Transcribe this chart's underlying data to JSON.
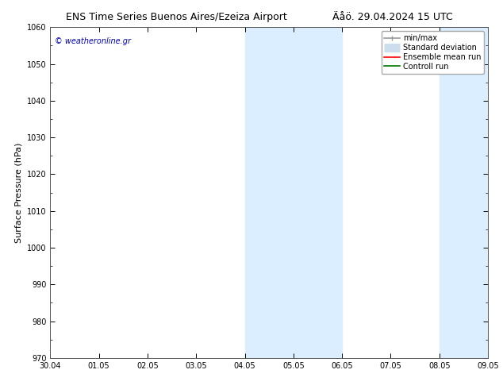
{
  "title_left": "ENS Time Series Buenos Aires/Ezeiza Airport",
  "title_right": "Äåö. 29.04.2024 15 UTC",
  "ylabel": "Surface Pressure (hPa)",
  "ylim": [
    970,
    1060
  ],
  "yticks": [
    970,
    980,
    990,
    1000,
    1010,
    1020,
    1030,
    1040,
    1050,
    1060
  ],
  "xlabels": [
    "30.04",
    "01.05",
    "02.05",
    "03.05",
    "04.05",
    "05.05",
    "06.05",
    "07.05",
    "08.05",
    "09.05"
  ],
  "shaded_bands": [
    {
      "xstart": 4.0,
      "xend": 6.0
    },
    {
      "xstart": 8.0,
      "xend": 9.0
    }
  ],
  "band_color": "#daeeff",
  "watermark": "© weatheronline.gr",
  "watermark_color": "#0000bb",
  "legend_items": [
    {
      "label": "min/max",
      "color": "#999999",
      "lw": 1.2,
      "type": "line_with_caps"
    },
    {
      "label": "Standard deviation",
      "color": "#ccddee",
      "lw": 8,
      "type": "thick_line"
    },
    {
      "label": "Ensemble mean run",
      "color": "#ff0000",
      "lw": 1.2,
      "type": "line"
    },
    {
      "label": "Controll run",
      "color": "#007700",
      "lw": 1.2,
      "type": "line"
    }
  ],
  "bg_color": "#ffffff",
  "axis_label_fontsize": 8,
  "title_fontsize": 9,
  "tick_fontsize": 7,
  "legend_fontsize": 7,
  "watermark_fontsize": 7
}
